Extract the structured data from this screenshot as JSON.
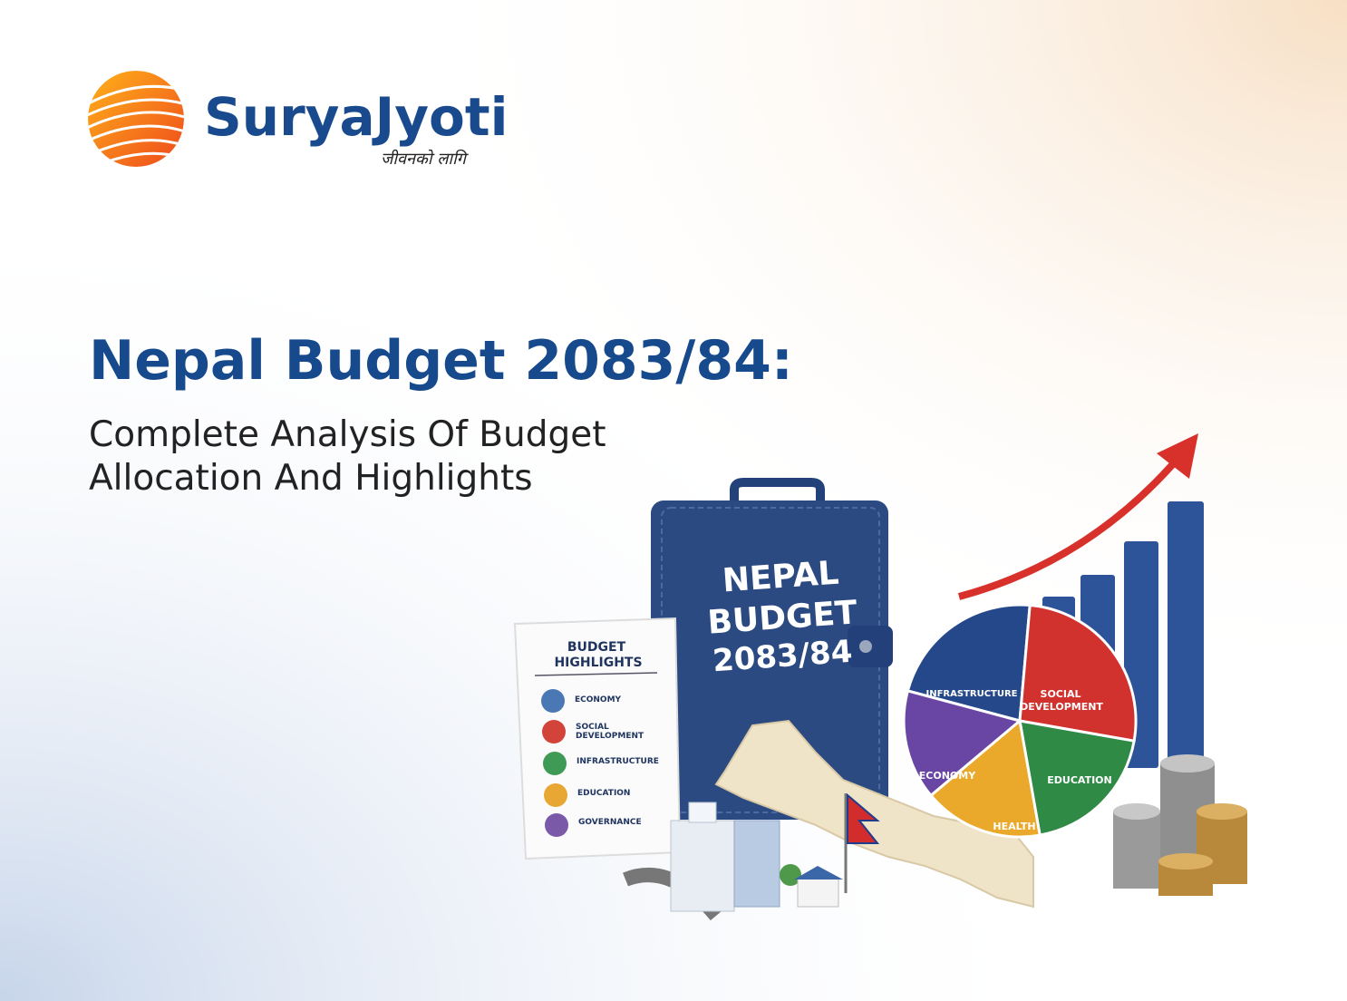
{
  "logo": {
    "name": "SuryaJyoti",
    "tagline": "जीवनको लागि"
  },
  "headline": {
    "title": "Nepal Budget 2083/84:",
    "subtitle": [
      "Complete Analysis Of Budget",
      "Allocation And Highlights"
    ]
  },
  "illustration": {
    "book_title": [
      "NEPAL",
      "BUDGET",
      "2083/84"
    ],
    "card": {
      "title": [
        "BUDGET",
        "HIGHLIGHTS"
      ],
      "items": [
        [
          "ECONOMY"
        ],
        [
          "SOCIAL",
          "DEVELOPMENT"
        ],
        [
          "INFRASTRUCTURE"
        ],
        [
          "EDUCATION"
        ],
        [
          "GOVERNANCE"
        ]
      ]
    },
    "pie_labels": [
      [
        "INFRASTRUCTURE"
      ],
      [
        "SOCIAL",
        "DEVELOPMENT"
      ],
      [
        "EDUCATION"
      ],
      [
        "HEALTH"
      ],
      [
        "ECONOMY"
      ]
    ]
  }
}
